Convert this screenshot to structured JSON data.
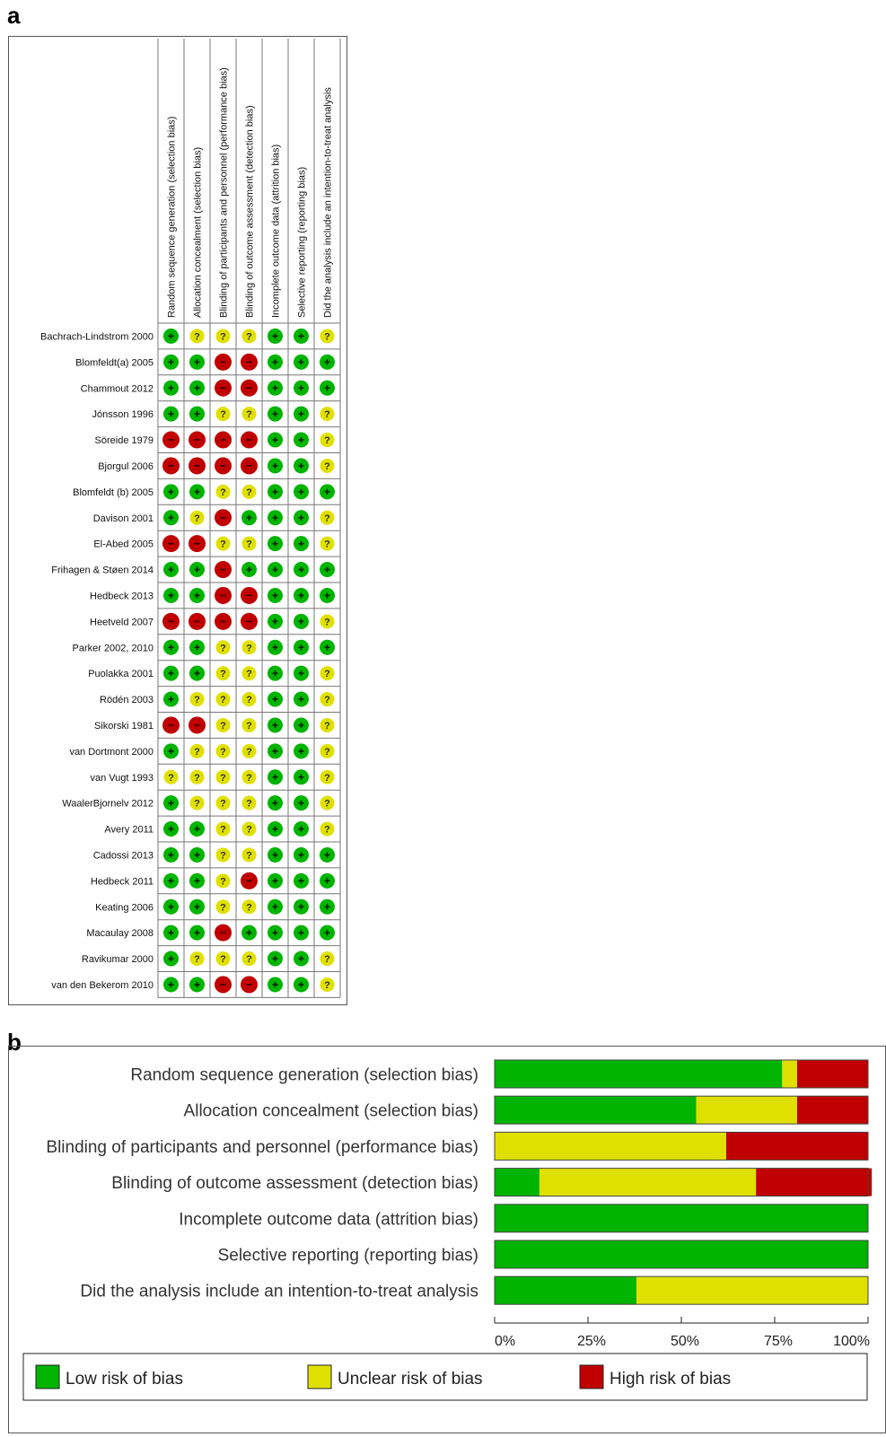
{
  "panels": {
    "a_label": "a",
    "b_label": "b"
  },
  "colors": {
    "low": "#00b400",
    "unclear": "#e0e000",
    "high": "#c00000"
  },
  "chart_data": [
    {
      "type": "table",
      "domains": [
        "Random sequence generation (selection bias)",
        "Allocation concealment (selection bias)",
        "Blinding of participants and personnel (performance bias)",
        "Blinding of outcome assessment (detection bias)",
        "Incomplete outcome data (attrition bias)",
        "Selective reporting (reporting bias)",
        "Did the analysis include an intention-to-treat analysis"
      ],
      "studies": [
        {
          "name": "Bachrach-Lindstrom 2000",
          "ratings": [
            "low",
            "unclear",
            "unclear",
            "unclear",
            "low",
            "low",
            "unclear"
          ]
        },
        {
          "name": "Blomfeldt(a)  2005",
          "ratings": [
            "low",
            "low",
            "high",
            "high",
            "low",
            "low",
            "low"
          ]
        },
        {
          "name": "Chammout 2012",
          "ratings": [
            "low",
            "low",
            "high",
            "high",
            "low",
            "low",
            "low"
          ]
        },
        {
          "name": "Jónsson 1996",
          "ratings": [
            "low",
            "low",
            "unclear",
            "unclear",
            "low",
            "low",
            "unclear"
          ]
        },
        {
          "name": "Söreide 1979",
          "ratings": [
            "high",
            "high",
            "high",
            "high",
            "low",
            "low",
            "unclear"
          ]
        },
        {
          "name": "Bjorgul 2006",
          "ratings": [
            "high",
            "high",
            "high",
            "high",
            "low",
            "low",
            "unclear"
          ]
        },
        {
          "name": "Blomfeldt (b) 2005",
          "ratings": [
            "low",
            "low",
            "unclear",
            "unclear",
            "low",
            "low",
            "low"
          ]
        },
        {
          "name": "Davison 2001",
          "ratings": [
            "low",
            "unclear",
            "high",
            "low",
            "low",
            "low",
            "unclear"
          ]
        },
        {
          "name": "El-Abed 2005",
          "ratings": [
            "high",
            "high",
            "unclear",
            "unclear",
            "low",
            "low",
            "unclear"
          ]
        },
        {
          "name": "Frihagen  & Støen 2014",
          "ratings": [
            "low",
            "low",
            "high",
            "low",
            "low",
            "low",
            "low"
          ]
        },
        {
          "name": "Hedbeck 2013",
          "ratings": [
            "low",
            "low",
            "high",
            "high",
            "low",
            "low",
            "low"
          ]
        },
        {
          "name": "Heetveld 2007",
          "ratings": [
            "high",
            "high",
            "high",
            "high",
            "low",
            "low",
            "unclear"
          ]
        },
        {
          "name": "Parker 2002, 2010",
          "ratings": [
            "low",
            "low",
            "unclear",
            "unclear",
            "low",
            "low",
            "low"
          ]
        },
        {
          "name": "Puolakka 2001",
          "ratings": [
            "low",
            "low",
            "unclear",
            "unclear",
            "low",
            "low",
            "unclear"
          ]
        },
        {
          "name": "Rödén 2003",
          "ratings": [
            "low",
            "unclear",
            "unclear",
            "unclear",
            "low",
            "low",
            "unclear"
          ]
        },
        {
          "name": "Sikorski 1981",
          "ratings": [
            "high",
            "high",
            "unclear",
            "unclear",
            "low",
            "low",
            "unclear"
          ]
        },
        {
          "name": "van Dortmont 2000",
          "ratings": [
            "low",
            "unclear",
            "unclear",
            "unclear",
            "low",
            "low",
            "unclear"
          ]
        },
        {
          "name": "van Vugt 1993",
          "ratings": [
            "unclear",
            "unclear",
            "unclear",
            "unclear",
            "low",
            "low",
            "unclear"
          ]
        },
        {
          "name": "WaalerBjornelv 2012",
          "ratings": [
            "low",
            "unclear",
            "unclear",
            "unclear",
            "low",
            "low",
            "unclear"
          ]
        },
        {
          "name": "Avery 2011",
          "ratings": [
            "low",
            "low",
            "unclear",
            "unclear",
            "low",
            "low",
            "unclear"
          ]
        },
        {
          "name": "Cadossi 2013",
          "ratings": [
            "low",
            "low",
            "unclear",
            "unclear",
            "low",
            "low",
            "low"
          ]
        },
        {
          "name": "Hedbeck 2011",
          "ratings": [
            "low",
            "low",
            "unclear",
            "high",
            "low",
            "low",
            "low"
          ]
        },
        {
          "name": "Keating 2006",
          "ratings": [
            "low",
            "low",
            "unclear",
            "unclear",
            "low",
            "low",
            "low"
          ]
        },
        {
          "name": "Macaulay 2008",
          "ratings": [
            "low",
            "low",
            "high",
            "low",
            "low",
            "low",
            "low"
          ]
        },
        {
          "name": "Ravikumar 2000",
          "ratings": [
            "low",
            "unclear",
            "unclear",
            "unclear",
            "low",
            "low",
            "unclear"
          ]
        },
        {
          "name": "van den Bekerom 2010",
          "ratings": [
            "low",
            "low",
            "high",
            "high",
            "low",
            "low",
            "unclear"
          ]
        }
      ]
    },
    {
      "type": "bar",
      "stacked": true,
      "orientation": "horizontal",
      "categories": [
        "Random sequence generation (selection bias)",
        "Allocation concealment (selection bias)",
        "Blinding of participants and personnel (performance bias)",
        "Blinding of outcome assessment (detection bias)",
        "Incomplete outcome data (attrition bias)",
        "Selective reporting (reporting bias)",
        "Did the analysis include an intention-to-treat analysis"
      ],
      "series": [
        {
          "name": "Low risk of bias",
          "color": "#00b400",
          "values": [
            77,
            54,
            0,
            12,
            100,
            100,
            38
          ]
        },
        {
          "name": "Unclear risk of bias",
          "color": "#e0e000",
          "values": [
            4,
            27,
            62,
            58,
            0,
            0,
            62
          ]
        },
        {
          "name": "High risk of bias",
          "color": "#c00000",
          "values": [
            19,
            19,
            38,
            31,
            0,
            0,
            0
          ]
        }
      ],
      "xlim": [
        0,
        100
      ],
      "x_ticks": [
        "0%",
        "25%",
        "50%",
        "75%",
        "100%"
      ],
      "legend": "bottom"
    }
  ]
}
